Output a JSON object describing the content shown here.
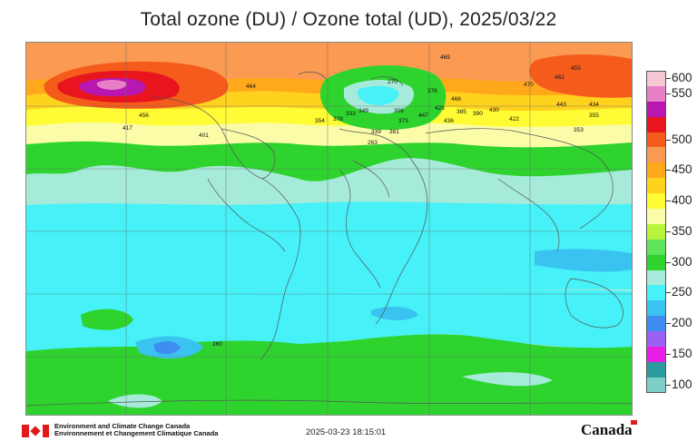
{
  "header": {
    "title": "Total ozone (DU) / Ozone total (UD), 2025/03/22"
  },
  "legend": {
    "units": "DU",
    "bands": [
      {
        "label": "600",
        "color": "#f6c8d4"
      },
      {
        "label": "550",
        "color": "#e880c8"
      },
      {
        "label": "",
        "color": "#b818b0"
      },
      {
        "label": "",
        "color": "#e8141e"
      },
      {
        "label": "500",
        "color": "#f55c1c"
      },
      {
        "label": "",
        "color": "#fb9a52"
      },
      {
        "label": "450",
        "color": "#ffa91a"
      },
      {
        "label": "",
        "color": "#ffd21e"
      },
      {
        "label": "400",
        "color": "#fffb34"
      },
      {
        "label": "",
        "color": "#fbfca8"
      },
      {
        "label": "350",
        "color": "#b8f43c"
      },
      {
        "label": "",
        "color": "#5fe45a"
      },
      {
        "label": "300",
        "color": "#2ed32e"
      },
      {
        "label": "",
        "color": "#a6ebda"
      },
      {
        "label": "250",
        "color": "#46f1f8"
      },
      {
        "label": "",
        "color": "#3ac3f0"
      },
      {
        "label": "200",
        "color": "#3d8ef0"
      },
      {
        "label": "",
        "color": "#9a61f2"
      },
      {
        "label": "150",
        "color": "#e81ee6"
      },
      {
        "label": "",
        "color": "#2b9a9c"
      },
      {
        "label": "100",
        "color": "#7fcfc9"
      }
    ]
  },
  "map": {
    "background_color": "#a6ebda",
    "stations": [
      {
        "label": "469"
      },
      {
        "label": "455"
      },
      {
        "label": "270"
      },
      {
        "label": "470"
      },
      {
        "label": "462"
      },
      {
        "label": "464"
      },
      {
        "label": "333"
      },
      {
        "label": "349"
      },
      {
        "label": "306"
      },
      {
        "label": "376"
      },
      {
        "label": "466"
      },
      {
        "label": "436"
      },
      {
        "label": "447"
      },
      {
        "label": "423"
      },
      {
        "label": "385"
      },
      {
        "label": "390"
      },
      {
        "label": "430"
      },
      {
        "label": "422"
      },
      {
        "label": "443"
      },
      {
        "label": "434"
      },
      {
        "label": "456"
      },
      {
        "label": "417"
      },
      {
        "label": "401"
      },
      {
        "label": "354"
      },
      {
        "label": "378"
      },
      {
        "label": "373"
      },
      {
        "label": "381"
      },
      {
        "label": "339"
      },
      {
        "label": "263"
      },
      {
        "label": "355"
      },
      {
        "label": "353"
      },
      {
        "label": "260"
      }
    ]
  },
  "footer": {
    "dept_en": "Environment and Climate Change Canada",
    "dept_fr": "Environnement et Changement Climatique Canada",
    "timestamp": "2025-03-23 18:15:01",
    "wordmark": "Canada"
  }
}
